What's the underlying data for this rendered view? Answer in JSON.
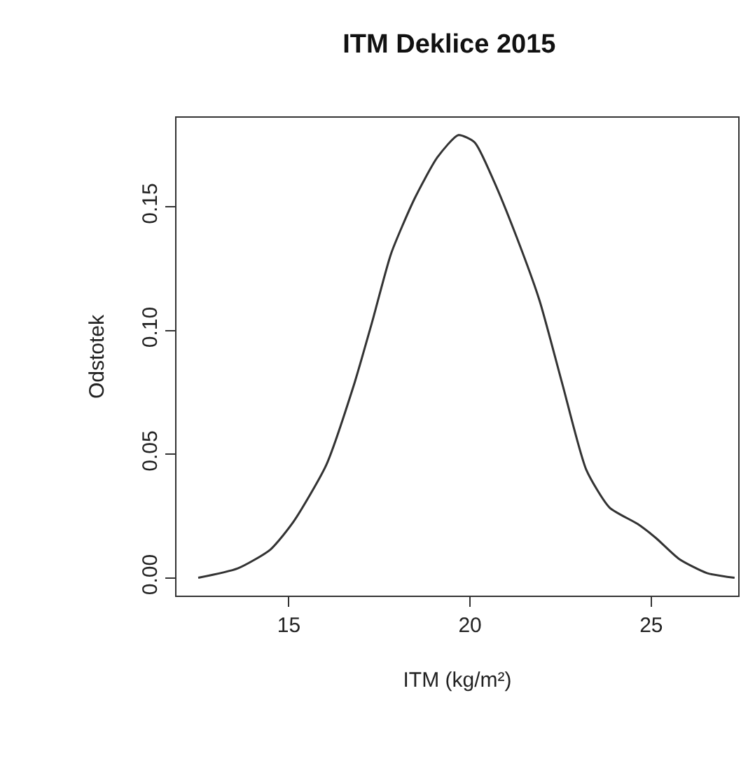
{
  "chart_data": {
    "type": "line",
    "title": "ITM Deklice 2015",
    "xlabel": "ITM (kg/m²)",
    "ylabel": "Odstotek",
    "series": [
      {
        "color": "#333333",
        "x": [
          12.5,
          13.59,
          14.49,
          15.13,
          16.03,
          16.79,
          17.31,
          17.82,
          18.46,
          19.1,
          19.68,
          20.13,
          20.64,
          21.28,
          21.92,
          22.56,
          23.21,
          23.85,
          24.62,
          25.13,
          25.77,
          26.54,
          27.3
        ],
        "values": [
          0.0,
          0.0038,
          0.0114,
          0.0227,
          0.0455,
          0.0777,
          0.104,
          0.131,
          0.153,
          0.17,
          0.179,
          0.176,
          0.161,
          0.138,
          0.112,
          0.0777,
          0.0436,
          0.0284,
          0.0218,
          0.0161,
          0.0076,
          0.0019,
          0.0
        ]
      }
    ],
    "xlim": [
      11.9,
      27.4
    ],
    "ylim": [
      -0.0072,
      0.186
    ],
    "xticks": [
      15,
      20,
      25
    ],
    "yticks": [
      {
        "value": 0,
        "label": "0.00"
      },
      {
        "value": 0.05,
        "label": "0.05"
      },
      {
        "value": 0.1,
        "label": "0.10"
      },
      {
        "value": 0.15,
        "label": "0.15"
      }
    ],
    "marker": "none",
    "line_style": "solid"
  }
}
